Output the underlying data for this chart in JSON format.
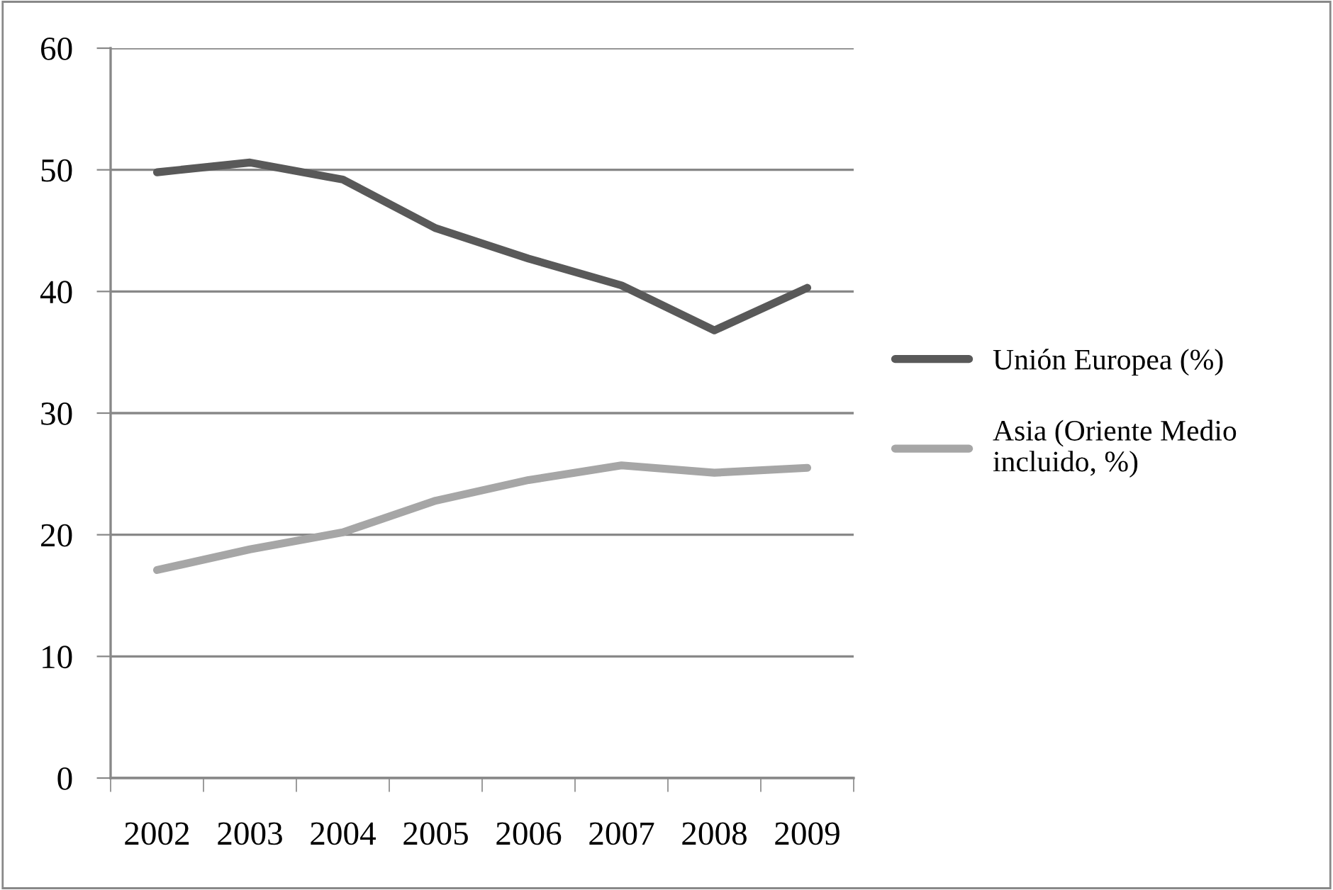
{
  "chart_data": {
    "type": "line",
    "categories": [
      "2002",
      "2003",
      "2004",
      "2005",
      "2006",
      "2007",
      "2008",
      "2009"
    ],
    "series": [
      {
        "name": "Unión Europea (%)",
        "color": "#595959",
        "values": [
          49.8,
          50.6,
          49.2,
          45.2,
          42.7,
          40.5,
          36.8,
          40.3
        ]
      },
      {
        "name": "Asia (Oriente Medio\nincluido, %)",
        "color": "#a6a6a6",
        "values": [
          17.1,
          18.8,
          20.2,
          22.8,
          24.5,
          25.7,
          25.1,
          25.5
        ]
      }
    ],
    "ylim": [
      0,
      60
    ],
    "yticks": [
      0,
      10,
      20,
      30,
      40,
      50,
      60
    ],
    "grid": "y",
    "legend": "right"
  }
}
